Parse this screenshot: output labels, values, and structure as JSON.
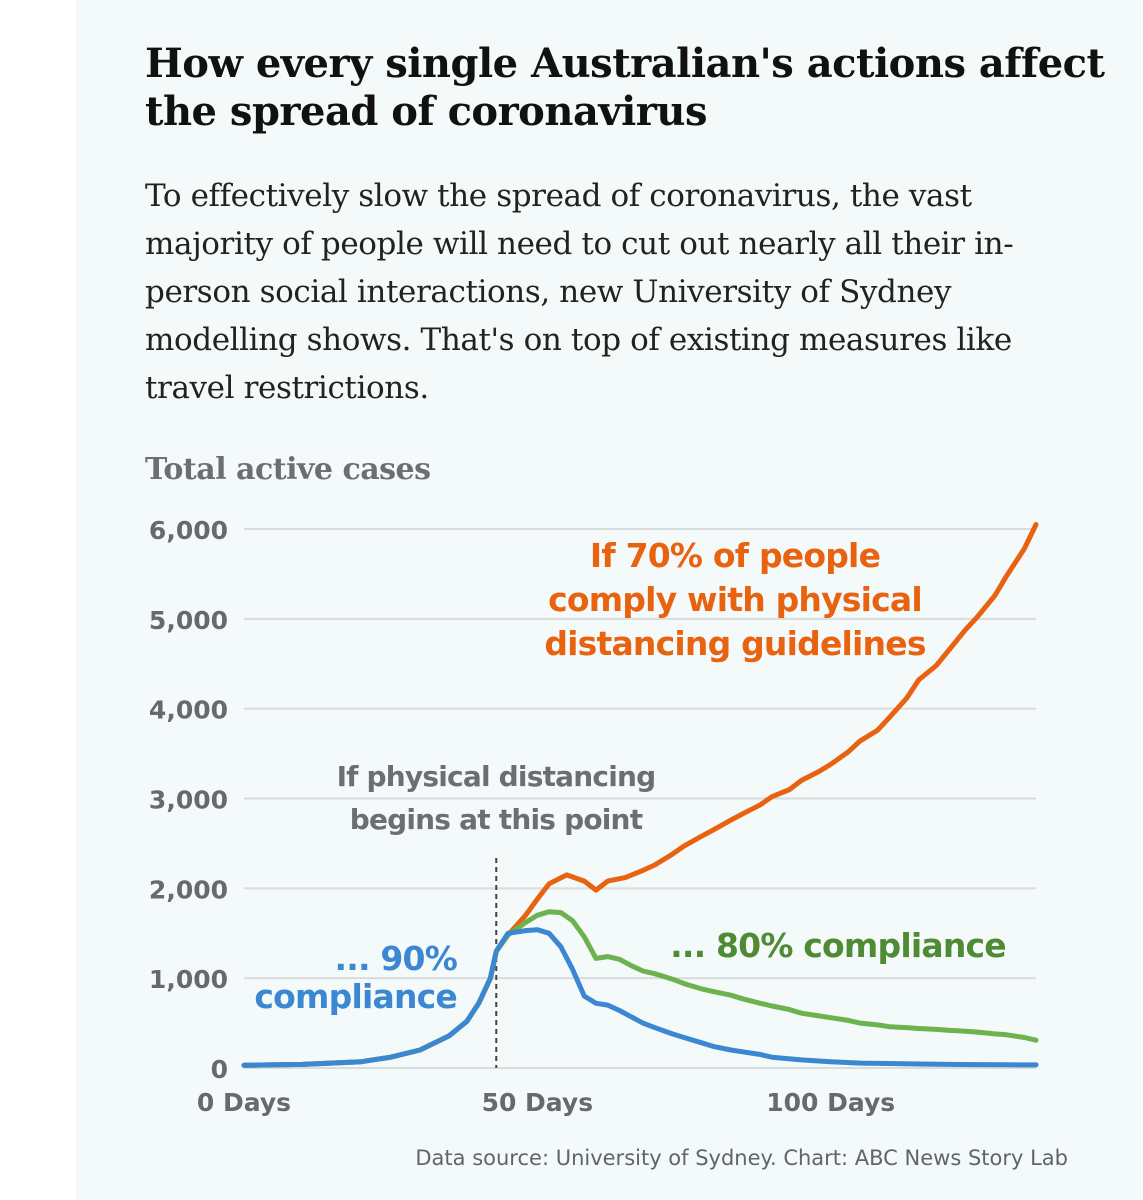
{
  "header": {
    "title": "How every single Australian's actions affect the spread of coronavirus",
    "subtitle": "To effectively slow the spread of coronavirus, the vast majority of people will need to cut out nearly all their in-person social interactions, new University of Sydney modelling shows. That's on top of existing measures like travel restrictions."
  },
  "footer": {
    "source": "Data source: University of Sydney. Chart: ABC News Story Lab"
  },
  "colors": {
    "compliance_70": "#e8620f",
    "compliance_80": "#6cb24e",
    "compliance_90": "#3c87d2",
    "label_80": "#4f8a34",
    "annotation": "#6b6f72",
    "grid": "#d8dcdc"
  },
  "chart_data": {
    "type": "line",
    "ylabel": "Total active cases",
    "xlabel": "",
    "xlim": [
      0,
      135
    ],
    "ylim": [
      0,
      6000
    ],
    "x_ticks": [
      {
        "value": 0,
        "label": "0 Days"
      },
      {
        "value": 50,
        "label": "50 Days"
      },
      {
        "value": 100,
        "label": "100 Days"
      }
    ],
    "y_ticks": [
      {
        "value": 0,
        "label": "0"
      },
      {
        "value": 1000,
        "label": "1,000"
      },
      {
        "value": 2000,
        "label": "2,000"
      },
      {
        "value": 3000,
        "label": "3,000"
      },
      {
        "value": 4000,
        "label": "4,000"
      },
      {
        "value": 5000,
        "label": "5,000"
      },
      {
        "value": 6000,
        "label": "6,000"
      }
    ],
    "grid": true,
    "intervention_day": 43,
    "annotations": [
      {
        "key": "intervention",
        "lines": [
          "If physical distancing",
          "begins at this point"
        ]
      },
      {
        "key": "c70",
        "lines": [
          "If 70% of people",
          "comply with physical",
          "distancing guidelines"
        ]
      },
      {
        "key": "c80",
        "lines": [
          "... 80% compliance"
        ]
      },
      {
        "key": "c90",
        "lines": [
          "... 90%",
          "compliance"
        ]
      }
    ],
    "series": [
      {
        "key": "c70",
        "x": [
          0,
          10,
          20,
          25,
          30,
          35,
          38,
          40,
          42,
          43,
          45,
          48,
          50,
          52,
          55,
          58,
          60,
          62,
          65,
          68,
          70,
          73,
          75,
          78,
          80,
          83,
          85,
          88,
          90,
          93,
          95,
          98,
          100,
          103,
          105,
          108,
          110,
          113,
          115,
          118,
          120,
          123,
          125,
          128,
          130,
          133,
          135
        ],
        "y": [
          30,
          40,
          70,
          120,
          200,
          360,
          520,
          720,
          1000,
          1300,
          1480,
          1700,
          1880,
          2050,
          2150,
          2080,
          1980,
          2080,
          2120,
          2200,
          2260,
          2380,
          2470,
          2580,
          2650,
          2760,
          2830,
          2930,
          3020,
          3100,
          3200,
          3300,
          3380,
          3520,
          3640,
          3760,
          3900,
          4120,
          4320,
          4480,
          4640,
          4880,
          5020,
          5260,
          5480,
          5780,
          6050
        ]
      },
      {
        "key": "c80",
        "x": [
          0,
          10,
          20,
          25,
          30,
          35,
          38,
          40,
          42,
          43,
          45,
          48,
          50,
          52,
          54,
          56,
          58,
          60,
          62,
          64,
          66,
          68,
          70,
          73,
          75,
          78,
          80,
          83,
          85,
          88,
          90,
          93,
          95,
          98,
          100,
          103,
          105,
          108,
          110,
          113,
          115,
          118,
          120,
          123,
          125,
          128,
          130,
          133,
          135
        ],
        "y": [
          30,
          40,
          70,
          120,
          200,
          360,
          520,
          720,
          1000,
          1300,
          1480,
          1620,
          1700,
          1740,
          1730,
          1640,
          1460,
          1220,
          1240,
          1210,
          1140,
          1080,
          1050,
          990,
          940,
          880,
          850,
          810,
          770,
          720,
          690,
          650,
          610,
          580,
          560,
          530,
          500,
          480,
          460,
          450,
          440,
          430,
          420,
          410,
          400,
          380,
          370,
          340,
          310
        ]
      },
      {
        "key": "c90",
        "x": [
          0,
          10,
          20,
          25,
          30,
          35,
          38,
          40,
          42,
          43,
          45,
          48,
          50,
          52,
          54,
          56,
          58,
          60,
          62,
          64,
          66,
          68,
          70,
          73,
          75,
          78,
          80,
          83,
          85,
          88,
          90,
          95,
          100,
          105,
          110,
          115,
          120,
          125,
          130,
          135
        ],
        "y": [
          30,
          40,
          70,
          120,
          200,
          360,
          520,
          720,
          1000,
          1300,
          1500,
          1530,
          1540,
          1500,
          1350,
          1100,
          800,
          720,
          700,
          640,
          570,
          500,
          450,
          380,
          340,
          280,
          240,
          200,
          180,
          150,
          120,
          90,
          70,
          55,
          50,
          45,
          40,
          38,
          36,
          35
        ]
      }
    ]
  }
}
